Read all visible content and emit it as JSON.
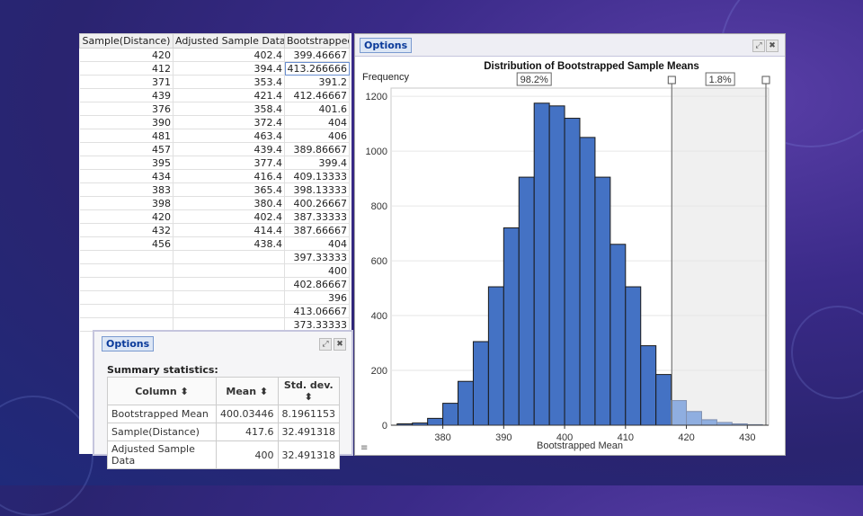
{
  "sheet": {
    "headers": [
      "Sample(Distance)",
      "Adjusted Sample Data",
      "Bootstrapped"
    ],
    "rows": [
      [
        "420",
        "402.4",
        "399.46667"
      ],
      [
        "412",
        "394.4",
        "413.266666"
      ],
      [
        "371",
        "353.4",
        "391.2"
      ],
      [
        "439",
        "421.4",
        "412.46667"
      ],
      [
        "376",
        "358.4",
        "401.6"
      ],
      [
        "390",
        "372.4",
        "404"
      ],
      [
        "481",
        "463.4",
        "406"
      ],
      [
        "457",
        "439.4",
        "389.86667"
      ],
      [
        "395",
        "377.4",
        "399.4"
      ],
      [
        "434",
        "416.4",
        "409.13333"
      ],
      [
        "383",
        "365.4",
        "398.13333"
      ],
      [
        "398",
        "380.4",
        "400.26667"
      ],
      [
        "420",
        "402.4",
        "387.33333"
      ],
      [
        "432",
        "414.4",
        "387.66667"
      ],
      [
        "456",
        "438.4",
        "404"
      ],
      [
        "",
        "",
        "397.33333"
      ],
      [
        "",
        "",
        "400"
      ],
      [
        "",
        "",
        "402.86667"
      ],
      [
        "",
        "",
        "396"
      ],
      [
        "",
        "",
        "413.06667"
      ],
      [
        "",
        "",
        "373.33333"
      ]
    ]
  },
  "summary": {
    "tab_label": "Options",
    "title": "Summary statistics:",
    "headers": [
      "Column ⬍",
      "Mean ⬍",
      "Std. dev. ⬍"
    ],
    "rows": [
      [
        "Bootstrapped Mean",
        "400.03446",
        "8.1961153"
      ],
      [
        "Sample(Distance)",
        "417.6",
        "32.491318"
      ],
      [
        "Adjusted Sample Data",
        "400",
        "32.491318"
      ]
    ]
  },
  "hist_panel": {
    "tab_label": "Options"
  },
  "chart_data": {
    "type": "bar",
    "title": "Distribution of Bootstrapped Sample Means",
    "xlabel": "Bootstrapped Mean",
    "ylabel": "Frequency",
    "bin_width": 2.5,
    "x": [
      373.75,
      376.25,
      378.75,
      381.25,
      383.75,
      386.25,
      388.75,
      391.25,
      393.75,
      396.25,
      398.75,
      401.25,
      403.75,
      406.25,
      408.75,
      411.25,
      413.75,
      416.25,
      418.75,
      421.25,
      423.75,
      426.25,
      428.75,
      431.25
    ],
    "values": [
      5,
      8,
      25,
      80,
      160,
      305,
      505,
      720,
      905,
      1175,
      1165,
      1120,
      1050,
      905,
      660,
      505,
      290,
      185,
      90,
      50,
      20,
      10,
      5,
      2
    ],
    "xlim": [
      371.5,
      433.5
    ],
    "ylim": [
      0,
      1230
    ],
    "xticks": [
      380,
      390,
      400,
      410,
      420,
      430
    ],
    "yticks": [
      0,
      200,
      400,
      600,
      800,
      1000,
      1200
    ],
    "threshold": 417.6,
    "left_pct_label": "98.2%",
    "right_pct_label": "1.8%",
    "bar_color": "#4472c4",
    "bar_color_light": "#8faee0"
  }
}
